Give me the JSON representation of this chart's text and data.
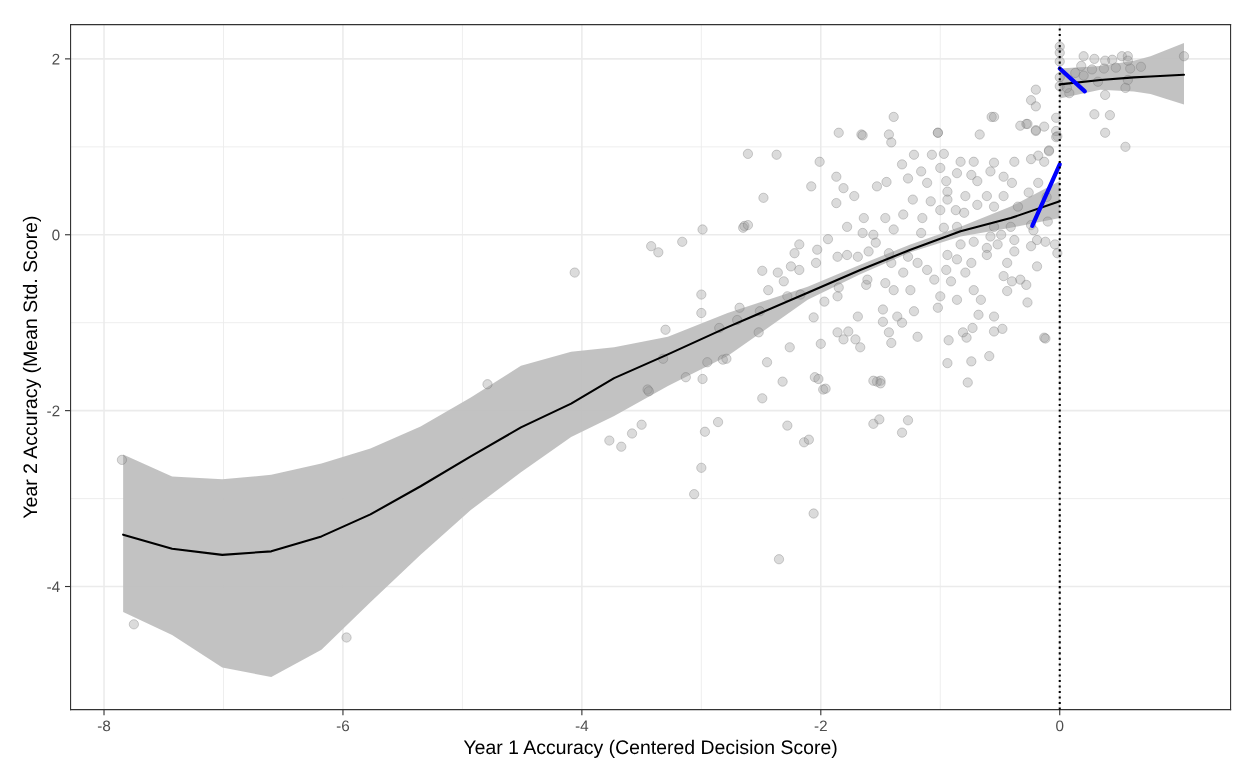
{
  "chart_data": {
    "type": "scatter",
    "xlabel": "Year 1 Accuracy (Centered Decision Score)",
    "ylabel": "Year 2 Accuracy (Mean Std. Score)",
    "xlim": [
      -8.28,
      1.43
    ],
    "ylim": [
      -5.4,
      2.39
    ],
    "xticks": [
      -8,
      -6,
      -4,
      -2,
      0
    ],
    "yticks": [
      -4,
      -2,
      0,
      2
    ],
    "grid": true,
    "legend": false,
    "ref_lines": [
      {
        "axis": "x",
        "value": 0,
        "label": null,
        "color": "#000000",
        "line_style": "dotted"
      }
    ],
    "series": [
      {
        "marker": "circle",
        "color": "#999999",
        "x": [
          -7.85,
          -7.75,
          -5.97,
          -4.79,
          -4.06,
          -3.42,
          -3.36,
          -3.16,
          -2.99,
          -3.77,
          -3.67,
          -3.58,
          -3.5,
          -3.45,
          -3.3,
          -3.0,
          -2.99,
          -2.97,
          -3.0,
          -3.06,
          -2.86,
          -2.64,
          -2.61,
          -2.85,
          -2.82,
          -2.52,
          -2.28,
          -2.14,
          -2.1,
          -2.06,
          -2.35,
          -2.01,
          -1.98,
          -2.05,
          -1.77,
          -1.53,
          -1.5,
          -1.56,
          -1.51,
          -0.78,
          -0.13,
          -1.85,
          -1.66,
          -1.43,
          -1.02,
          -0.57,
          -0.28,
          -0.13,
          -0.33,
          -0.04,
          -0.11,
          -0.18,
          -1.87,
          -1.81,
          -1.72,
          -1.87,
          -1.78,
          -1.64,
          -1.53,
          -1.45,
          -1.32,
          -1.22,
          -1.07,
          -0.97,
          -1.27,
          -1.16,
          -1.11,
          -1.0,
          -0.83,
          -0.72,
          -0.55,
          -0.38,
          -0.24,
          -0.86,
          -0.74,
          -0.58,
          -0.47,
          -0.95,
          -0.69,
          -0.4,
          -0.94,
          -0.79,
          -0.61,
          -0.47,
          -1.23,
          -1.08,
          -0.94,
          -0.69,
          -0.55,
          -0.35,
          -1.31,
          -1.15,
          -1.0,
          -0.87,
          -0.8,
          -1.46,
          -1.39,
          -1.56,
          -1.65,
          -1.16,
          -0.97,
          -0.86,
          -0.55,
          -0.41,
          -0.24,
          -0.19,
          -0.12,
          -0.02,
          -0.58,
          -0.49,
          -0.38,
          -0.83,
          -0.72,
          -0.61,
          -0.52,
          -0.38,
          -0.24,
          -0.94,
          -0.86,
          -0.61,
          -0.44,
          -0.19,
          -1.11,
          -0.95,
          -0.74,
          -1.19,
          -1.31,
          -1.41,
          -1.54,
          -1.69,
          -1.78,
          -1.86,
          -1.6,
          -1.43,
          -1.27,
          -1.05,
          -0.91,
          -0.79,
          -0.47,
          -0.4,
          -0.28,
          -0.72,
          -0.44,
          -1.0,
          -0.86,
          -0.66,
          -0.27,
          -1.46,
          -1.39,
          -1.25,
          -1.62,
          -1.61,
          -1.85,
          -1.86,
          -1.97,
          -2.03,
          -2.04,
          -1.94,
          -2.18,
          -2.22,
          -2.18,
          -2.25,
          -2.36,
          -2.31,
          -2.49,
          -2.44,
          -2.28,
          -2.17,
          -1.48,
          -1.36,
          -1.22,
          -1.02,
          -0.68,
          -0.55,
          -1.48,
          -1.32,
          -1.69,
          -1.43,
          -1.19,
          -0.93,
          -0.81,
          -0.73,
          -0.55,
          -0.48,
          -1.86,
          -1.81,
          -1.71,
          -1.67,
          -1.41,
          -0.94,
          -0.74,
          -0.59,
          -0.77,
          -1.56,
          -2.0,
          -2.06,
          -1.27,
          -1.32,
          -0.12,
          -1.65,
          -1.41,
          -1.39,
          -1.02,
          -0.67,
          -0.55,
          -0.33,
          -0.2,
          -0.09,
          -0.13,
          -0.18,
          -0.26,
          -0.1,
          -0.22,
          -0.02,
          -2.37,
          -2.08,
          -2.48,
          -2.65,
          -2.61,
          -3.0,
          -2.68,
          -2.7,
          -2.51,
          -2.45,
          -2.26,
          -2.32,
          -2.49,
          -2.79,
          -2.95,
          -3.13,
          -3.32,
          -3.44,
          -2.02,
          -1.96,
          -1.5,
          0,
          0,
          0,
          0,
          0,
          0.2,
          0.29,
          0.38,
          0.44,
          0.52,
          0.57,
          0.18,
          0.27,
          0.37,
          0.47,
          0.59,
          0.68,
          0.57,
          1.04,
          0.13,
          0.2,
          0.32,
          0.08,
          0.06,
          0.57,
          0.55,
          0.38,
          0.29,
          0.42,
          0.38,
          0.55,
          -0.2,
          -0.24,
          -0.2,
          -0.27,
          -0.2,
          -0.03,
          -0.03,
          -0.03,
          -0.09
        ],
        "values": [
          -2.56,
          -4.43,
          -4.58,
          -1.7,
          -0.43,
          -0.13,
          -0.2,
          -0.08,
          0.06,
          -2.34,
          -2.41,
          -2.26,
          -2.16,
          -1.76,
          -1.08,
          -0.68,
          -1.64,
          -2.24,
          -2.65,
          -2.95,
          -2.13,
          0.1,
          0.92,
          -1.06,
          -1.42,
          -1.11,
          -2.17,
          -2.36,
          -2.33,
          -3.17,
          -3.69,
          0.83,
          -1.76,
          -1.62,
          -1.1,
          -1.67,
          -1.66,
          -2.15,
          -2.1,
          -1.17,
          -1.17,
          1.16,
          1.14,
          1.14,
          1.16,
          1.34,
          1.26,
          1.23,
          -0.51,
          -0.11,
          0.43,
          0.9,
          0.66,
          0.53,
          0.44,
          0.36,
          0.09,
          0.19,
          0.55,
          0.6,
          0.8,
          0.91,
          0.91,
          0.92,
          0.64,
          0.72,
          0.59,
          0.76,
          0.83,
          0.83,
          0.82,
          0.83,
          0.86,
          0.7,
          0.68,
          0.72,
          0.66,
          0.61,
          0.61,
          0.59,
          0.49,
          0.44,
          0.44,
          0.44,
          0.4,
          0.38,
          0.4,
          0.34,
          0.32,
          0.32,
          0.23,
          0.19,
          0.28,
          0.28,
          0.25,
          0.19,
          0.06,
          0.0,
          0.02,
          0.02,
          0.08,
          0.09,
          0.09,
          0.09,
          0.11,
          -0.06,
          -0.08,
          -0.21,
          -0.02,
          0.0,
          -0.06,
          -0.11,
          -0.08,
          -0.15,
          -0.11,
          -0.19,
          -0.13,
          -0.23,
          -0.28,
          -0.23,
          -0.32,
          -0.36,
          -0.4,
          -0.4,
          -0.32,
          -0.32,
          -0.43,
          -0.32,
          -0.09,
          -0.25,
          -0.23,
          -0.25,
          -0.19,
          -0.21,
          -0.25,
          -0.51,
          -0.53,
          -0.43,
          -0.47,
          -0.53,
          -0.57,
          -0.63,
          -0.64,
          -0.7,
          -0.74,
          -0.74,
          -0.77,
          -0.55,
          -0.63,
          -0.63,
          -0.57,
          -0.51,
          -0.6,
          -0.7,
          -0.76,
          -0.17,
          -0.32,
          -0.05,
          -0.11,
          -0.21,
          -0.4,
          -0.36,
          -0.43,
          -0.53,
          -0.41,
          -0.63,
          -0.7,
          -0.68,
          -0.85,
          -0.93,
          -0.87,
          -0.83,
          -0.91,
          -0.93,
          -0.99,
          -1.0,
          -0.93,
          -1.11,
          -1.16,
          -1.2,
          -1.11,
          -1.06,
          -1.1,
          -1.07,
          -1.11,
          -1.19,
          -1.19,
          -1.28,
          -1.23,
          -1.46,
          -1.44,
          -1.38,
          -1.68,
          -1.66,
          -1.24,
          -0.94,
          -2.11,
          -2.25,
          -1.18,
          1.13,
          1.05,
          1.34,
          1.16,
          1.14,
          1.34,
          1.24,
          1.19,
          0.96,
          0.83,
          0.59,
          0.48,
          0.15,
          0.05,
          1.12,
          0.91,
          0.55,
          0.42,
          0.08,
          0.11,
          -0.89,
          -0.83,
          -0.97,
          -0.87,
          -1.45,
          -1.28,
          -1.67,
          -1.86,
          -1.41,
          -1.45,
          -1.62,
          -1.41,
          -1.78,
          -1.64,
          -1.75,
          -1.69,
          2.14,
          2.07,
          1.97,
          1.79,
          1.69,
          2.03,
          2.0,
          1.98,
          1.99,
          2.03,
          2.03,
          1.92,
          1.88,
          1.89,
          1.9,
          1.89,
          1.91,
          1.98,
          2.03,
          1.84,
          1.81,
          1.74,
          1.61,
          1.67,
          1.76,
          1.67,
          1.59,
          1.37,
          1.36,
          1.16,
          1.0,
          1.65,
          1.53,
          1.46,
          1.26,
          1.18,
          1.33,
          1.18,
          1.11,
          0.95
        ]
      },
      {
        "type": "line",
        "color": "#000000",
        "x": [
          -7.84,
          -7.43,
          -7.01,
          -6.6,
          -6.18,
          -5.77,
          -5.35,
          -4.93,
          -4.51,
          -4.09,
          -3.73,
          -3.28,
          -2.78,
          -2.11,
          -1.67,
          -1.25,
          -0.83,
          -0.41,
          0
        ],
        "values": [
          -3.41,
          -3.57,
          -3.64,
          -3.6,
          -3.43,
          -3.18,
          -2.86,
          -2.52,
          -2.19,
          -1.92,
          -1.63,
          -1.36,
          -1.05,
          -0.66,
          -0.4,
          -0.17,
          0.04,
          0.19,
          0.38
        ],
        "lower": [
          -4.29,
          -4.55,
          -4.92,
          -5.03,
          -4.72,
          -4.18,
          -3.64,
          -3.13,
          -2.7,
          -2.3,
          -2.06,
          -1.72,
          -1.38,
          -0.74,
          -0.45,
          -0.2,
          -0.02,
          0.08,
          0.19
        ],
        "upper": [
          -2.5,
          -2.75,
          -2.78,
          -2.73,
          -2.6,
          -2.43,
          -2.18,
          -1.85,
          -1.49,
          -1.33,
          -1.28,
          -1.16,
          -0.89,
          -0.59,
          -0.34,
          -0.11,
          0.09,
          0.32,
          0.61
        ]
      },
      {
        "type": "line",
        "color": "#000000",
        "x": [
          0,
          0.34,
          0.62,
          0.76,
          1.04
        ],
        "values": [
          1.71,
          1.76,
          1.79,
          1.8,
          1.82
        ],
        "lower": [
          1.55,
          1.65,
          1.63,
          1.6,
          1.48
        ],
        "upper": [
          1.89,
          1.92,
          1.98,
          2.03,
          2.18
        ]
      },
      {
        "type": "line",
        "color": "#0000ff",
        "x": [
          -0.23,
          0
        ],
        "values": [
          0.1,
          0.8
        ]
      },
      {
        "type": "line",
        "color": "#0000ff",
        "x": [
          0,
          0.21
        ],
        "values": [
          1.89,
          1.63
        ]
      }
    ]
  }
}
